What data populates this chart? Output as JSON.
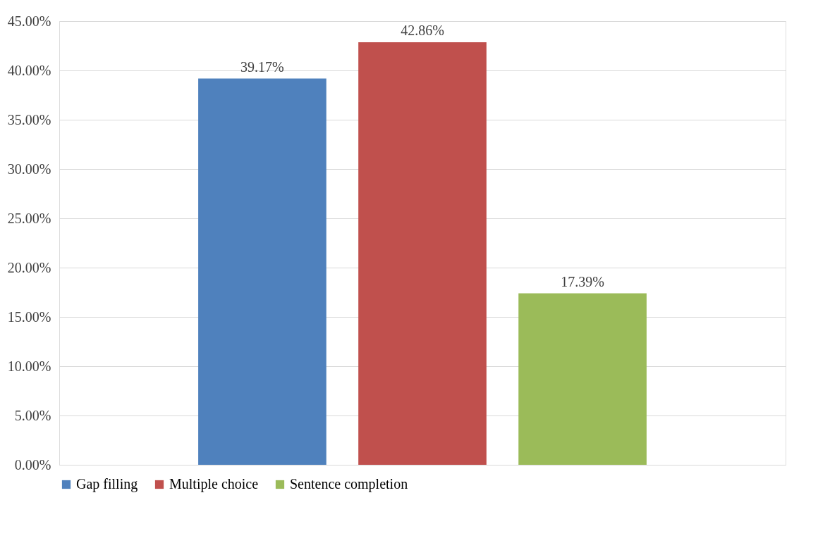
{
  "chart_data": {
    "type": "bar",
    "categories": [
      null
    ],
    "series": [
      {
        "name": "Gap filling",
        "color": "#4f81bd",
        "values": [
          39.17
        ],
        "value_labels": [
          "39.17%"
        ]
      },
      {
        "name": "Multiple choice",
        "color": "#c0504d",
        "values": [
          42.86
        ],
        "value_labels": [
          "42.86%"
        ]
      },
      {
        "name": "Sentence completion",
        "color": "#9bbb59",
        "values": [
          17.39
        ],
        "value_labels": [
          "17.39%"
        ]
      }
    ],
    "ylim": [
      0,
      45
    ],
    "yticks": [
      {
        "value": 0,
        "label": "0.00%"
      },
      {
        "value": 5,
        "label": "5.00%"
      },
      {
        "value": 10,
        "label": "10.00%"
      },
      {
        "value": 15,
        "label": "15.00%"
      },
      {
        "value": 20,
        "label": "20.00%"
      },
      {
        "value": 25,
        "label": "25.00%"
      },
      {
        "value": 30,
        "label": "30.00%"
      },
      {
        "value": 35,
        "label": "35.00%"
      },
      {
        "value": 40,
        "label": "40.00%"
      },
      {
        "value": 45,
        "label": "45.00%"
      }
    ],
    "grid": "y",
    "legend": "bottom",
    "tick_labels": "y"
  }
}
